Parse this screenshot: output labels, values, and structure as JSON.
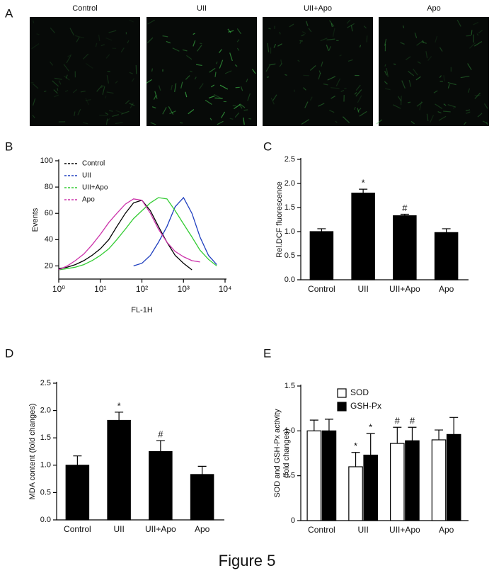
{
  "images": {
    "panel": "A",
    "labels": [
      "Control",
      "UII",
      "UII+Apo",
      "Apo"
    ]
  },
  "figure_label": "Figure 5",
  "chart_data": [
    {
      "type": "line",
      "panel": "B",
      "xlabel": "FL-1H",
      "ylabel": "Events",
      "log_x": true,
      "x": [
        1,
        1.6,
        2.5,
        4,
        6.3,
        10,
        16,
        25,
        40,
        63,
        100,
        160,
        250,
        400,
        630,
        1000,
        1600,
        2500,
        4000,
        6300
      ],
      "xlim": [
        1,
        10000
      ],
      "xticks": [
        {
          "value": 1,
          "label": "10⁰"
        },
        {
          "value": 10,
          "label": "10¹"
        },
        {
          "value": 100,
          "label": "10²"
        },
        {
          "value": 1000,
          "label": "10³"
        },
        {
          "value": 10000,
          "label": "10⁴"
        }
      ],
      "ylim": [
        10,
        100
      ],
      "yticks": [
        20,
        40,
        60,
        80,
        100
      ],
      "legend": "top-left",
      "series": [
        {
          "name": "Control",
          "color": "#000000",
          "values": [
            18,
            19,
            21,
            24,
            28,
            33,
            40,
            50,
            60,
            68,
            70,
            62,
            50,
            38,
            28,
            22,
            17,
            null,
            null,
            null
          ]
        },
        {
          "name": "UII",
          "color": "#1f3fbf",
          "values": [
            null,
            null,
            null,
            null,
            null,
            null,
            null,
            null,
            null,
            20,
            22,
            28,
            38,
            50,
            65,
            72,
            60,
            42,
            28,
            21
          ]
        },
        {
          "name": "UII+Apo",
          "color": "#33cc33",
          "values": [
            17,
            18,
            19,
            21,
            24,
            28,
            33,
            40,
            48,
            56,
            62,
            68,
            72,
            71,
            62,
            52,
            42,
            32,
            25,
            20
          ]
        },
        {
          "name": "Apo",
          "color": "#cc33aa",
          "values": [
            17,
            20,
            24,
            29,
            36,
            44,
            53,
            60,
            67,
            71,
            70,
            60,
            48,
            38,
            31,
            27,
            24,
            23,
            null,
            null
          ]
        }
      ]
    },
    {
      "type": "bar",
      "panel": "C",
      "ylabel": "Rel.DCF fluorescence",
      "color": "#000000",
      "categories": [
        "Control",
        "UII",
        "UII+Apo",
        "Apo"
      ],
      "values": [
        1.0,
        1.8,
        1.33,
        0.98
      ],
      "errors": [
        0.06,
        0.08,
        0.03,
        0.08
      ],
      "markers": [
        null,
        "*",
        "#",
        null
      ],
      "ylim": [
        0,
        2.5
      ],
      "yticks": [
        {
          "value": 0,
          "label": "0.0"
        },
        0.5,
        {
          "value": 1,
          "label": "1.0"
        },
        1.5,
        {
          "value": 2,
          "label": "2.0"
        },
        2.5
      ]
    },
    {
      "type": "bar",
      "panel": "D",
      "ylabel": "MDA content (fold changes)",
      "color": "#000000",
      "categories": [
        "Control",
        "UII",
        "UII+Apo",
        "Apo"
      ],
      "values": [
        1.0,
        1.82,
        1.25,
        0.83
      ],
      "errors": [
        0.17,
        0.15,
        0.2,
        0.15
      ],
      "markers": [
        null,
        "*",
        "#",
        null
      ],
      "ylim": [
        0,
        2.5
      ],
      "yticks": [
        {
          "value": 0,
          "label": "0.0"
        },
        0.5,
        {
          "value": 1,
          "label": "1.0"
        },
        1.5,
        {
          "value": 2,
          "label": "2.0"
        },
        2.5
      ]
    },
    {
      "type": "grouped_bar",
      "panel": "E",
      "ylabel": [
        "SOD and GSH-Px activity",
        "(fold changes)"
      ],
      "categories": [
        "Control",
        "UII",
        "UII+Apo",
        "Apo"
      ],
      "legend": "top-left",
      "series": [
        {
          "name": "SOD",
          "color": "#ffffff",
          "values": [
            1.0,
            0.6,
            0.86,
            0.9
          ],
          "errors": [
            0.12,
            0.16,
            0.18,
            0.11
          ],
          "markers": [
            null,
            "*",
            "#",
            null
          ]
        },
        {
          "name": "GSH-Px",
          "color": "#000000",
          "values": [
            1.0,
            0.73,
            0.89,
            0.96
          ],
          "errors": [
            0.13,
            0.24,
            0.15,
            0.19
          ],
          "markers": [
            null,
            "*",
            "#",
            null
          ]
        }
      ],
      "ylim": [
        0,
        1.5
      ],
      "yticks": [
        0,
        0.5,
        {
          "value": 1,
          "label": "1.0"
        },
        1.5
      ]
    }
  ]
}
